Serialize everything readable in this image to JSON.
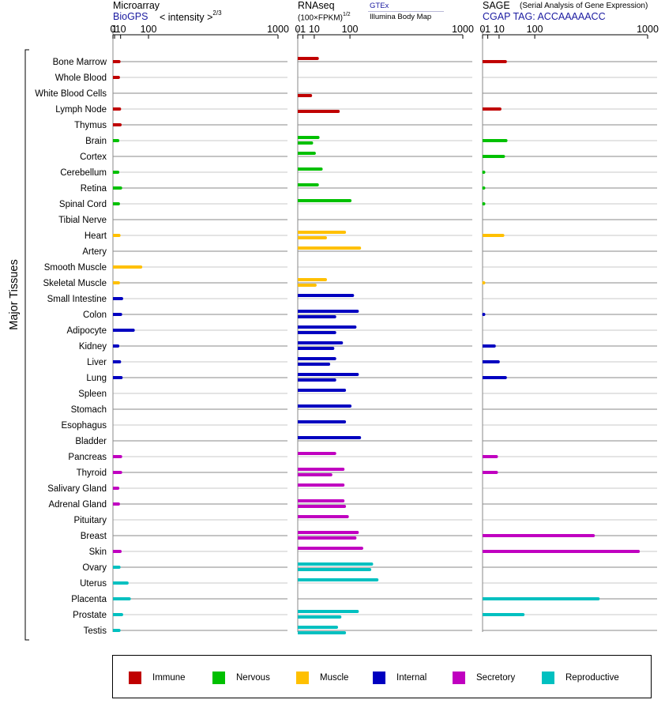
{
  "headers": {
    "microarray": {
      "title": "Microarray",
      "source": "BioGPS",
      "measure": "< intensity >",
      "exponent": "2/3"
    },
    "rnaseq": {
      "title": "RNAseq",
      "measure": "(100×FPKM)",
      "exponent": "1/2",
      "source1": "GTEx",
      "source2": "Illumina Body Map"
    },
    "sage": {
      "title": "SAGE",
      "subtitle": "(Serial Analysis of Gene Expression)",
      "tag": "CGAP TAG: ACCAAAAACC"
    }
  },
  "y_axis_label": "Major Tissues",
  "chart_data": {
    "type": "bar",
    "orientation": "horizontal",
    "x_scale": "power (see panel headers)",
    "x_ticks": [
      0,
      1,
      10,
      100,
      1000
    ],
    "x_tick_labels": [
      "0",
      "1",
      "10",
      "100",
      "1000"
    ],
    "xlim": [
      0,
      1000
    ],
    "categories": [
      "Bone Marrow",
      "Whole Blood",
      "White Blood Cells",
      "Lymph Node",
      "Thymus",
      "Brain",
      "Cortex",
      "Cerebellum",
      "Retina",
      "Spinal Cord",
      "Tibial Nerve",
      "Heart",
      "Artery",
      "Smooth Muscle",
      "Skeletal Muscle",
      "Small Intestine",
      "Colon",
      "Adipocyte",
      "Kidney",
      "Liver",
      "Lung",
      "Spleen",
      "Stomach",
      "Esophagus",
      "Bladder",
      "Pancreas",
      "Thyroid",
      "Salivary Gland",
      "Adrenal Gland",
      "Pituitary",
      "Breast",
      "Skin",
      "Ovary",
      "Uterus",
      "Placenta",
      "Prostate",
      "Testis"
    ],
    "groups": [
      "Immune",
      "Immune",
      "Immune",
      "Immune",
      "Immune",
      "Nervous",
      "Nervous",
      "Nervous",
      "Nervous",
      "Nervous",
      "Nervous",
      "Muscle",
      "Muscle",
      "Muscle",
      "Muscle",
      "Internal",
      "Internal",
      "Internal",
      "Internal",
      "Internal",
      "Internal",
      "Internal",
      "Internal",
      "Internal",
      "Internal",
      "Secretory",
      "Secretory",
      "Secretory",
      "Secretory",
      "Secretory",
      "Secretory",
      "Secretory",
      "Reproductive",
      "Reproductive",
      "Reproductive",
      "Reproductive",
      "Reproductive"
    ],
    "legend": [
      {
        "name": "Immune",
        "color": "#c00000"
      },
      {
        "name": "Nervous",
        "color": "#00c000"
      },
      {
        "name": "Muscle",
        "color": "#ffc000"
      },
      {
        "name": "Internal",
        "color": "#0000c0"
      },
      {
        "name": "Secretory",
        "color": "#c000c0"
      },
      {
        "name": "Reproductive",
        "color": "#00c0c0"
      }
    ],
    "legend_position": "bottom",
    "microarray": [
      7,
      6,
      null,
      8,
      9,
      5,
      null,
      5,
      10,
      6,
      null,
      7,
      null,
      69,
      6,
      12,
      10,
      43,
      5,
      8,
      11,
      null,
      null,
      null,
      null,
      10,
      10,
      5,
      6,
      null,
      null,
      9,
      7,
      25,
      31,
      12,
      7
    ],
    "rnaseq_gtex": [
      14,
      null,
      null,
      null,
      null,
      15,
      10,
      20,
      14,
      100,
      null,
      80,
      140,
      null,
      28,
      110,
      130,
      120,
      70,
      50,
      130,
      80,
      100,
      80,
      140,
      50,
      75,
      75,
      75,
      90,
      130,
      150,
      200,
      230,
      null,
      130,
      55
    ],
    "rnaseq_illumina": [
      null,
      null,
      6,
      60,
      null,
      7,
      null,
      null,
      null,
      null,
      null,
      28,
      null,
      null,
      11,
      null,
      50,
      50,
      45,
      35,
      50,
      null,
      null,
      null,
      null,
      null,
      40,
      null,
      80,
      null,
      120,
      null,
      190,
      null,
      null,
      65,
      80
    ],
    "sage": [
      19,
      null,
      null,
      11,
      null,
      20,
      16,
      0,
      0,
      0,
      null,
      15,
      null,
      null,
      0,
      null,
      0,
      null,
      5,
      9,
      19,
      null,
      null,
      null,
      null,
      7,
      7,
      null,
      null,
      null,
      450,
      890,
      null,
      null,
      490,
      60,
      null
    ]
  }
}
